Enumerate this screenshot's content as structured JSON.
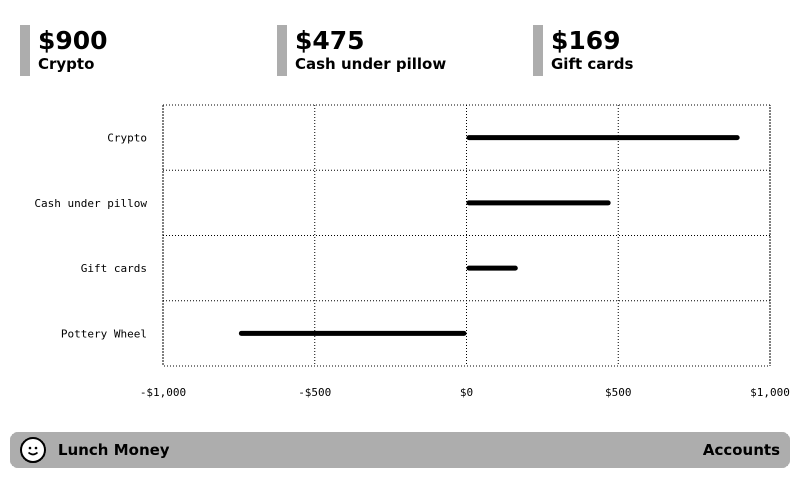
{
  "stats": [
    {
      "value": "$900",
      "label": "Crypto"
    },
    {
      "value": "$475",
      "label": "Cash under pillow"
    },
    {
      "value": "$169",
      "label": "Gift cards"
    }
  ],
  "chart_data": {
    "type": "bar",
    "orientation": "horizontal",
    "title": "",
    "xlabel": "",
    "ylabel": "",
    "categories": [
      "Crypto",
      "Cash under pillow",
      "Gift cards",
      "Pottery Wheel"
    ],
    "values": [
      900,
      475,
      169,
      -750
    ],
    "xlim": [
      -1000,
      1000
    ],
    "xticks": [
      -1000,
      -500,
      0,
      500,
      1000
    ],
    "xtick_labels": [
      "-$1,000",
      "-$500",
      "$0",
      "$500",
      "$1,000"
    ],
    "grid": true,
    "legend": "none",
    "bar_color": "#000000"
  },
  "footer": {
    "logo_icon": "smiley-face-icon",
    "app_name": "Lunch Money",
    "section": "Accounts"
  }
}
